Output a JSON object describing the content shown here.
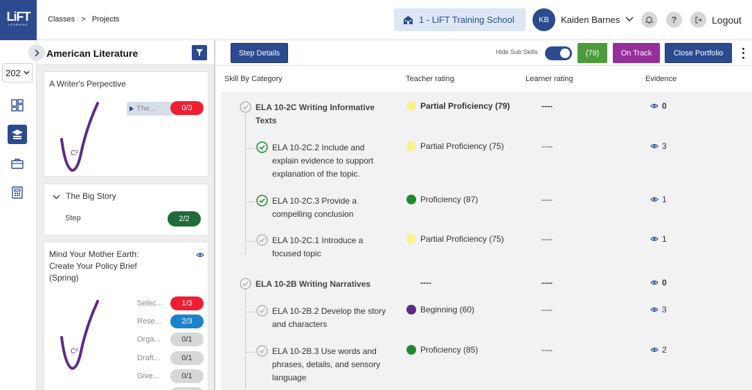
{
  "logo": {
    "line1": "LiFT",
    "line2": "LEARNING"
  },
  "breadcrumb": {
    "item1": "Classes",
    "sep": ">",
    "item2": "Projects"
  },
  "header": {
    "school_label": "1 - LiFT Training School",
    "avatar_initials": "KB",
    "user_name": "Kaiden Barnes",
    "help_label": "?",
    "logout_label": "Logout"
  },
  "rail": {
    "year_value": "202"
  },
  "projects_panel": {
    "title": "American Literature",
    "cards": [
      {
        "title": "A Writer's Perpective",
        "tab_label": "The...",
        "pill": "0/3"
      },
      {
        "title": "The Big Story",
        "step_label": "Step",
        "pill": "2/2"
      },
      {
        "title": "Mind Your Mother Earth: Create Your Policy Brief (Spring)",
        "steps": [
          {
            "label": "Selec...",
            "value": "1/3"
          },
          {
            "label": "Rese...",
            "value": "2/3"
          },
          {
            "label": "Orga...",
            "value": "0/1"
          },
          {
            "label": "Draft...",
            "value": "0/1"
          },
          {
            "label": "Give...",
            "value": "0/1"
          }
        ]
      }
    ]
  },
  "toolbar": {
    "step_details": "Step Details",
    "hide_sub_skills": "Hide Sub Skills",
    "hide_sub_skills_on": true,
    "score_badge": "(79)",
    "status_badge": "On Track",
    "close_portfolio": "Close Portfolio"
  },
  "table": {
    "headers": {
      "skill": "Skill By Category",
      "teacher": "Teacher rating",
      "learner": "Learner rating",
      "evidence": "Evidence"
    },
    "rows": [
      {
        "level": "category",
        "skill": "ELA 10-2C Writing Informative Texts",
        "teacher": "Partial Proficiency (79)",
        "color": "#f7f38a",
        "learner": "----",
        "evidence": "0",
        "status": "pending"
      },
      {
        "level": "sub",
        "skill": "ELA 10-2C.2 Include and explain evidence to support explanation of the topic.",
        "teacher": "Partial Proficiency (75)",
        "color": "#f7f38a",
        "learner": "----",
        "evidence": "3",
        "status": "done"
      },
      {
        "level": "sub",
        "skill": "ELA 10-2C.3 Provide a compelling conclusion",
        "teacher": "Proficiency (87)",
        "color": "#1e8a2c",
        "learner": "----",
        "evidence": "1",
        "status": "done"
      },
      {
        "level": "sub",
        "skill": "ELA 10-2C.1 Introduce a focused topic",
        "teacher": "Partial Proficiency (75)",
        "color": "#f7f38a",
        "learner": "----",
        "evidence": "1",
        "status": "pending"
      },
      {
        "level": "category",
        "skill": "ELA 10-2B Writing Narratives",
        "teacher": "----",
        "color": "",
        "learner": "----",
        "evidence": "0",
        "status": "pending"
      },
      {
        "level": "sub",
        "skill": "ELA 10-2B.2 Develop the story and characters",
        "teacher": "Beginning (60)",
        "color": "#5c2a8a",
        "learner": "----",
        "evidence": "3",
        "status": "pending"
      },
      {
        "level": "sub",
        "skill": "ELA 10-2B.3 Use words and phrases, details, and sensory language",
        "teacher": "Proficiency (85)",
        "color": "#1e8a2c",
        "learner": "----",
        "evidence": "2",
        "status": "pending"
      }
    ]
  },
  "colors": {
    "brand_navy": "#2b4a8f",
    "pill_red": "#f01e32",
    "pill_blue": "#1a84c8",
    "pill_green": "#1f6b3a",
    "on_track_purple": "#962e9b",
    "score_green": "#4d9b3c",
    "check_green": "#1e8a2c"
  }
}
